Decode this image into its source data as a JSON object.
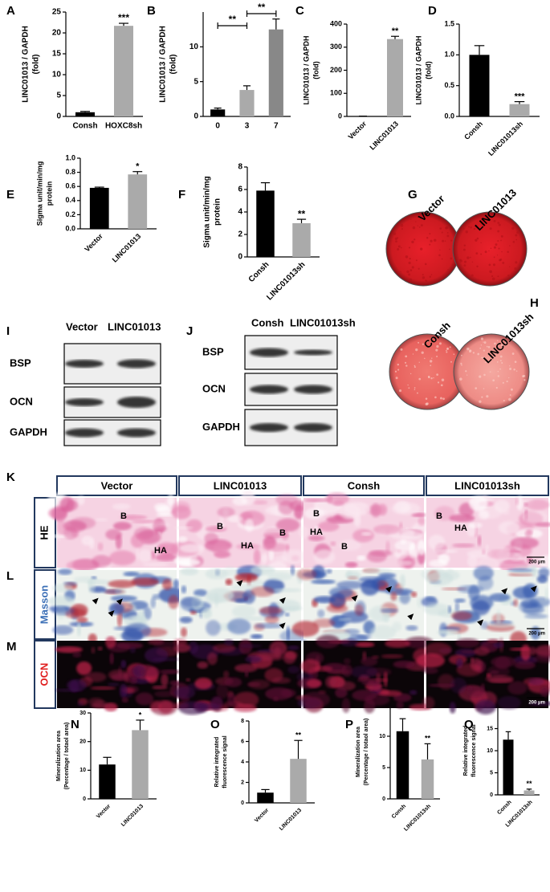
{
  "chart_data": [
    {
      "type": "bar",
      "label": "A",
      "ylabel": [
        "LINC01013 / GAPDH",
        "(fold)"
      ],
      "categories": [
        "Consh",
        "HOXC8sh"
      ],
      "values": [
        1,
        21.7
      ],
      "errors": [
        0.2,
        0.6
      ],
      "colors": [
        "#000000",
        "#aaaaaa"
      ],
      "ylim": [
        0,
        25
      ],
      "yticks": [
        0,
        5,
        10,
        15,
        20,
        25
      ],
      "annotations": [
        {
          "index": 1,
          "text": "***"
        }
      ]
    },
    {
      "type": "bar",
      "label": "B",
      "ylabel": [
        "LINC01013 / GAPDH",
        "(fold)"
      ],
      "categories": [
        "0",
        "3",
        "7"
      ],
      "values": [
        1,
        3.8,
        12.5
      ],
      "errors": [
        0.2,
        0.6,
        1.5
      ],
      "colors": [
        "#000000",
        "#aaaaaa",
        "#888888"
      ],
      "ylim": [
        0,
        15
      ],
      "yticks": [
        0,
        5,
        10
      ],
      "brackets": [
        {
          "between": [
            0,
            1
          ],
          "text": "**"
        },
        {
          "between": [
            1,
            2
          ],
          "text": "**"
        }
      ]
    },
    {
      "type": "bar",
      "label": "C",
      "ylabel": [
        "LINC01013 / GAPDH",
        "(fold)"
      ],
      "categories": [
        "Vector",
        "LINC01013"
      ],
      "values": [
        1,
        335
      ],
      "errors": [
        0.3,
        12
      ],
      "colors": [
        "#000000",
        "#aaaaaa"
      ],
      "ylim": [
        0,
        400
      ],
      "yticks": [
        0,
        100,
        200,
        300,
        400
      ],
      "xtick_rotation": 45,
      "annotations": [
        {
          "index": 1,
          "text": "**"
        }
      ]
    },
    {
      "type": "bar",
      "label": "D",
      "ylabel": [
        "LINC01013 / GAPDH",
        "(fold)"
      ],
      "categories": [
        "Consh",
        "LINC01013sh"
      ],
      "values": [
        1.0,
        0.2
      ],
      "errors": [
        0.15,
        0.04
      ],
      "colors": [
        "#000000",
        "#aaaaaa"
      ],
      "ylim": [
        0,
        1.5
      ],
      "yticks": [
        {
          "value": 0,
          "label": "0.0"
        },
        0.5,
        {
          "value": 1,
          "label": "1.0"
        },
        1.5
      ],
      "xtick_rotation": 45,
      "annotations": [
        {
          "index": 1,
          "text": "***"
        }
      ]
    },
    {
      "type": "bar",
      "label": "E",
      "ylabel": [
        "Sigma unit/min/mg",
        "protein"
      ],
      "categories": [
        "Vector",
        "LINC01013"
      ],
      "values": [
        0.58,
        0.77
      ],
      "errors": [
        0.01,
        0.04
      ],
      "colors": [
        "#000000",
        "#aaaaaa"
      ],
      "ylim": [
        0,
        1
      ],
      "yticks": [
        {
          "value": 0,
          "label": "0.0"
        },
        0.2,
        0.4,
        0.6,
        0.8,
        {
          "value": 1,
          "label": "1.0"
        }
      ],
      "xtick_rotation": 45,
      "annotations": [
        {
          "index": 1,
          "text": "*"
        }
      ]
    },
    {
      "type": "bar",
      "label": "F",
      "ylabel": [
        "Sigma unit/min/mg",
        "protein"
      ],
      "categories": [
        "Consh",
        "LINC01013sh"
      ],
      "values": [
        5.9,
        3.0
      ],
      "errors": [
        0.7,
        0.35
      ],
      "colors": [
        "#000000",
        "#aaaaaa"
      ],
      "ylim": [
        0,
        8
      ],
      "yticks": [
        0,
        2,
        4,
        6,
        8
      ],
      "xtick_rotation": 45,
      "annotations": [
        {
          "index": 1,
          "text": "**"
        }
      ]
    },
    {
      "type": "bar",
      "label": "N",
      "ylabel": [
        "Mineralization area",
        "(Percentage / totaol area)"
      ],
      "categories": [
        "Vector",
        "LINC01013"
      ],
      "values": [
        12,
        24
      ],
      "errors": [
        2.5,
        3.5
      ],
      "colors": [
        "#000000",
        "#aaaaaa"
      ],
      "ylim": [
        0,
        30
      ],
      "yticks": [
        0,
        10,
        20,
        30
      ],
      "xtick_rotation": 45,
      "annotations": [
        {
          "index": 1,
          "text": "*"
        }
      ]
    },
    {
      "type": "bar",
      "label": "O",
      "ylabel": [
        "Relative integrated",
        "fluorescence signal"
      ],
      "categories": [
        "Vector",
        "LINC01013"
      ],
      "values": [
        1,
        4.3
      ],
      "errors": [
        0.3,
        1.8
      ],
      "colors": [
        "#000000",
        "#aaaaaa"
      ],
      "ylim": [
        0,
        8
      ],
      "yticks": [
        0,
        2,
        4,
        6,
        8
      ],
      "xtick_rotation": 45,
      "annotations": [
        {
          "index": 1,
          "text": "**"
        }
      ]
    },
    {
      "type": "bar",
      "label": "P",
      "ylabel": [
        "Mineralization area",
        "(Percentage / totaol area)"
      ],
      "categories": [
        "Consh",
        "LINC01013sh"
      ],
      "values": [
        10.8,
        6.3
      ],
      "errors": [
        2,
        2.5
      ],
      "colors": [
        "#000000",
        "#aaaaaa"
      ],
      "ylim": [
        0,
        15
      ],
      "yticks": [
        0,
        5,
        10,
        15
      ],
      "xtick_rotation": 45,
      "annotations": [
        {
          "index": 1,
          "text": "**"
        }
      ]
    },
    {
      "type": "bar",
      "label": "Q",
      "ylabel": [
        "Relative integrated",
        "fluorescence signal"
      ],
      "categories": [
        "Consh",
        "LINC01013sh"
      ],
      "values": [
        12.5,
        1
      ],
      "errors": [
        1.8,
        0.3
      ],
      "colors": [
        "#000000",
        "#aaaaaa"
      ],
      "ylim": [
        0,
        20
      ],
      "yticks": [
        0,
        5,
        10,
        15,
        20
      ],
      "xtick_rotation": 45,
      "annotations": [
        {
          "index": 1,
          "text": "**"
        }
      ]
    }
  ],
  "plates": [
    {
      "label": "G",
      "wells": [
        "Vector",
        "LINC01013"
      ]
    },
    {
      "label": "H",
      "wells": [
        "Consh",
        "LINC01013sh"
      ]
    }
  ],
  "blots": [
    {
      "label": "I",
      "lanes": [
        "Vector",
        "LINC01013"
      ],
      "rows": [
        "BSP",
        "OCN",
        "GAPDH"
      ]
    },
    {
      "label": "J",
      "lanes": [
        "Consh",
        "LINC01013sh"
      ],
      "rows": [
        "BSP",
        "OCN",
        "GAPDH"
      ]
    }
  ],
  "histology": {
    "label": "K",
    "columns": [
      "Vector",
      "LINC01013",
      "Consh",
      "LINC01013sh"
    ],
    "rows": [
      {
        "label": "HE",
        "color": "#000000"
      },
      {
        "letter": "L",
        "label": "Masson",
        "color": "#3b6fb6"
      },
      {
        "letter": "M",
        "label": "OCN",
        "color": "#e02020"
      }
    ],
    "cell_labels": [
      "B",
      "HA",
      "B",
      "B",
      "HA",
      "B",
      "HA",
      "B",
      "B",
      "HA"
    ],
    "scale_bar": "200 μm"
  }
}
